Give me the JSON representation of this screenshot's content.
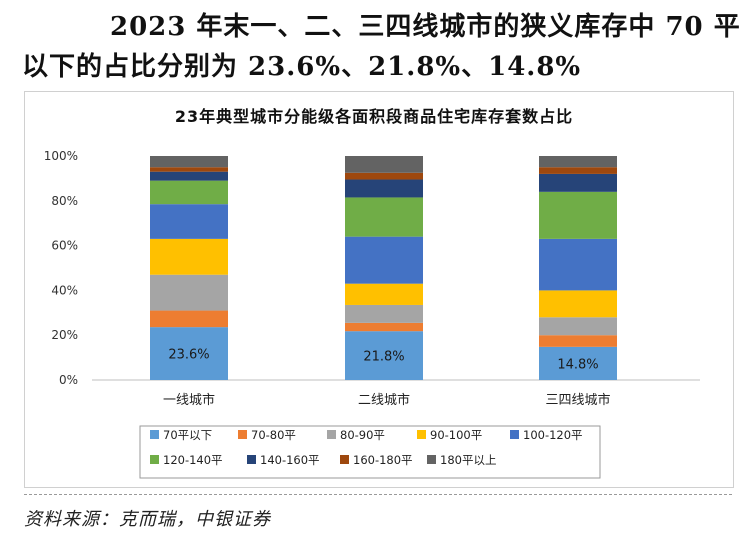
{
  "headline": {
    "line1": "2023 年末一、二、三四线城市的狭义库存中 70 平",
    "line2": "以下的占比分别为 23.6%、21.8%、14.8%"
  },
  "source": "资料来源：克而瑞，中银证券",
  "colors": {
    "70平以下": "#5b9bd5",
    "70-80平": "#ed7d31",
    "80-90平": "#a5a5a5",
    "90-100平": "#ffc000",
    "100-120平": "#4472c4",
    "120-140平": "#70ad47",
    "140-160平": "#264478",
    "160-180平": "#9e480e",
    "180平以上": "#636363"
  },
  "chart_data": {
    "type": "bar",
    "stacked": true,
    "percent": true,
    "title": "23年典型城市分能级各面积段商品住宅库存套数占比",
    "categories": [
      "一线城市",
      "二线城市",
      "三四线城市"
    ],
    "ylim": [
      0,
      100
    ],
    "yticks": [
      "0%",
      "20%",
      "40%",
      "60%",
      "80%",
      "100%"
    ],
    "grid": false,
    "legend_position": "bottom",
    "series": [
      {
        "name": "70平以下",
        "values": [
          23.6,
          21.8,
          14.8
        ]
      },
      {
        "name": "70-80平",
        "values": [
          7.4,
          3.7,
          5.2
        ]
      },
      {
        "name": "80-90平",
        "values": [
          16.0,
          8.0,
          8.0
        ]
      },
      {
        "name": "90-100平",
        "values": [
          16.0,
          9.5,
          12.0
        ]
      },
      {
        "name": "100-120平",
        "values": [
          15.5,
          21.0,
          23.0
        ]
      },
      {
        "name": "120-140平",
        "values": [
          10.5,
          17.5,
          21.0
        ]
      },
      {
        "name": "140-160平",
        "values": [
          4.0,
          8.0,
          8.0
        ]
      },
      {
        "name": "160-180平",
        "values": [
          2.0,
          3.0,
          3.0
        ]
      },
      {
        "name": "180平以上",
        "values": [
          5.0,
          7.5,
          5.0
        ]
      }
    ],
    "data_labels": [
      "23.6%",
      "21.8%",
      "14.8%"
    ]
  },
  "legend_labels": [
    "70平以下",
    "70-80平",
    "80-90平",
    "90-100平",
    "100-120平",
    "120-140平",
    "140-160平",
    "160-180平",
    "180平以上"
  ]
}
